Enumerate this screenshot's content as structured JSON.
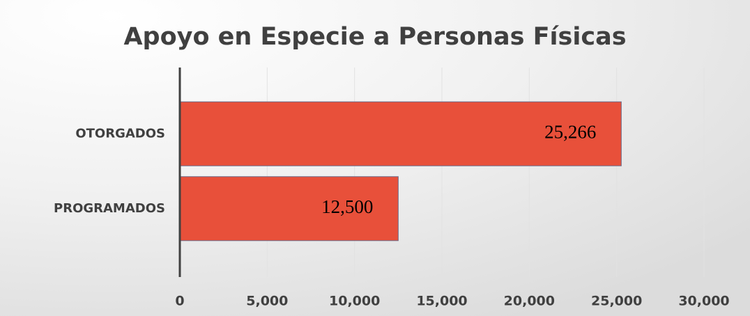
{
  "chart_data": {
    "type": "barh",
    "title": "Apoyo en Especie a Personas Físicas",
    "categories": [
      "OTORGADOS",
      "PROGRAMADOS"
    ],
    "values": [
      25266,
      12500
    ],
    "value_labels": [
      "25,266",
      "12,500"
    ],
    "color": "#e8503a",
    "xlim": [
      0,
      30000
    ],
    "xticks": [
      0,
      {
        "value": 5000,
        "label": "5,000"
      },
      {
        "value": 10000,
        "label": "10,000"
      },
      {
        "value": 15000,
        "label": "15,000"
      },
      {
        "value": 20000,
        "label": "20,000"
      },
      {
        "value": 25000,
        "label": "25,000"
      },
      {
        "value": 30000,
        "label": "30,000"
      }
    ],
    "grid": true
  }
}
